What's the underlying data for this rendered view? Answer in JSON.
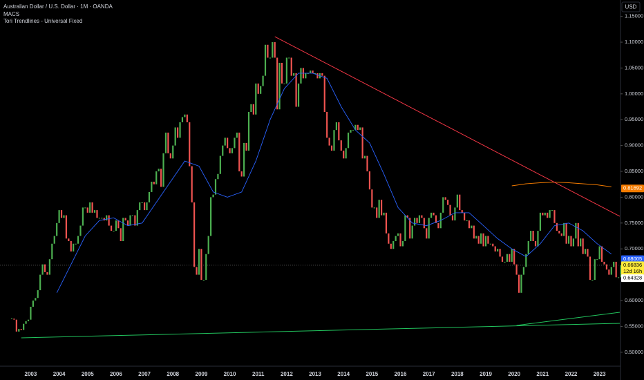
{
  "chart_data": {
    "type": "candlestick",
    "title": "Australian Dollar / U.S. Dollar · 1M · OANDA",
    "indicators": [
      "MACS",
      "Tori Trendlines - Universal Fixed"
    ],
    "currency_button": "USD",
    "up_color": "#4caf50",
    "down_color": "#ef5350",
    "closes": [
      0.565,
      0.563,
      0.54,
      0.545,
      0.543,
      0.555,
      0.56,
      0.563,
      0.588,
      0.6,
      0.605,
      0.62,
      0.65,
      0.67,
      0.655,
      0.65,
      0.68,
      0.71,
      0.725,
      0.75,
      0.775,
      0.76,
      0.765,
      0.72,
      0.715,
      0.695,
      0.71,
      0.71,
      0.725,
      0.745,
      0.78,
      0.78,
      0.77,
      0.79,
      0.77,
      0.775,
      0.76,
      0.76,
      0.76,
      0.755,
      0.765,
      0.745,
      0.735,
      0.735,
      0.755,
      0.74,
      0.715,
      0.76,
      0.755,
      0.745,
      0.765,
      0.765,
      0.745,
      0.775,
      0.79,
      0.79,
      0.775,
      0.79,
      0.81,
      0.83,
      0.825,
      0.85,
      0.855,
      0.82,
      0.885,
      0.925,
      0.885,
      0.875,
      0.9,
      0.935,
      0.915,
      0.945,
      0.955,
      0.96,
      0.945,
      0.86,
      0.79,
      0.665,
      0.65,
      0.7,
      0.64,
      0.64,
      0.69,
      0.725,
      0.8,
      0.805,
      0.835,
      0.845,
      0.88,
      0.9,
      0.915,
      0.895,
      0.885,
      0.895,
      0.915,
      0.925,
      0.85,
      0.84,
      0.905,
      0.89,
      0.965,
      0.98,
      0.96,
      1.02,
      1.0,
      1.015,
      1.035,
      1.095,
      1.07,
      1.07,
      1.1,
      1.07,
      0.97,
      1.06,
      1.02,
      1.02,
      1.07,
      1.07,
      1.035,
      1.04,
      0.975,
      1.02,
      1.05,
      1.03,
      1.04,
      1.04,
      1.045,
      1.04,
      1.04,
      1.03,
      1.04,
      1.035,
      0.965,
      0.915,
      0.9,
      0.89,
      0.93,
      0.945,
      0.91,
      0.89,
      0.875,
      0.895,
      0.925,
      0.93,
      0.93,
      0.94,
      0.93,
      0.935,
      0.875,
      0.88,
      0.85,
      0.815,
      0.78,
      0.78,
      0.76,
      0.795,
      0.765,
      0.77,
      0.73,
      0.71,
      0.7,
      0.715,
      0.725,
      0.73,
      0.705,
      0.715,
      0.765,
      0.76,
      0.72,
      0.745,
      0.76,
      0.75,
      0.765,
      0.76,
      0.74,
      0.72,
      0.76,
      0.77,
      0.765,
      0.75,
      0.74,
      0.77,
      0.8,
      0.795,
      0.785,
      0.765,
      0.755,
      0.78,
      0.805,
      0.775,
      0.77,
      0.755,
      0.755,
      0.74,
      0.745,
      0.72,
      0.725,
      0.71,
      0.73,
      0.705,
      0.725,
      0.71,
      0.71,
      0.705,
      0.695,
      0.7,
      0.685,
      0.675,
      0.675,
      0.69,
      0.675,
      0.7,
      0.67,
      0.65,
      0.615,
      0.65,
      0.665,
      0.69,
      0.715,
      0.735,
      0.715,
      0.705,
      0.735,
      0.77,
      0.765,
      0.77,
      0.76,
      0.775,
      0.775,
      0.75,
      0.735,
      0.73,
      0.725,
      0.75,
      0.71,
      0.725,
      0.705,
      0.72,
      0.75,
      0.705,
      0.72,
      0.69,
      0.7,
      0.685,
      0.64,
      0.64,
      0.68,
      0.68,
      0.705,
      0.675,
      0.67,
      0.66,
      0.65,
      0.665,
      0.675,
      0.645,
      0.645,
      0.66836
    ],
    "ma_fast": {
      "color": "#2962ff",
      "values": [
        0.615,
        0.67,
        0.725,
        0.755,
        0.76,
        0.745,
        0.75,
        0.79,
        0.83,
        0.87,
        0.86,
        0.81,
        0.8,
        0.81,
        0.87,
        0.95,
        1.01,
        1.04,
        1.04,
        1.03,
        0.975,
        0.93,
        0.905,
        0.845,
        0.78,
        0.75,
        0.745,
        0.755,
        0.77,
        0.77,
        0.745,
        0.72,
        0.7,
        0.685,
        0.71,
        0.745,
        0.75,
        0.735,
        0.71,
        0.69
      ]
    },
    "ma_slow": {
      "color": "#f57c00",
      "values": [
        0.822,
        0.826,
        0.828,
        0.829,
        0.828,
        0.826,
        0.824,
        0.82
      ]
    },
    "trendlines": [
      {
        "color": "#f23645",
        "values": [
          1.1107,
          0.763
        ]
      },
      {
        "color": "#22c55e",
        "values": [
          0.5278,
          0.5559
        ]
      },
      {
        "color": "#22c55e",
        "values": [
          0.5519,
          0.5773
        ]
      }
    ],
    "price_labels": [
      {
        "value": 0.81692,
        "color": "#f57c00"
      },
      {
        "value": 0.68005,
        "color": "#2962ff"
      },
      {
        "value": 0.66836,
        "color": "#ffeb3b",
        "countdown": "12d 16h"
      },
      {
        "value": 0.64328,
        "color": "#ffffff"
      }
    ],
    "year_labels": [
      "2003",
      "2004",
      "2005",
      "2006",
      "2007",
      "2008",
      "2009",
      "2010",
      "2011",
      "2012",
      "2013",
      "2014",
      "2015",
      "2016",
      "2017",
      "2018",
      "2019",
      "2020",
      "2021",
      "2022",
      "2023"
    ],
    "ylim": [
      0.473,
      1.1816
    ],
    "yticks": [
      {
        "value": 0.5,
        "label": "0.50000"
      },
      {
        "value": 0.55,
        "label": "0.55000"
      },
      {
        "value": 0.6,
        "label": "0.60000"
      },
      {
        "value": 0.65,
        "label": "0.65000"
      },
      {
        "value": 0.7,
        "label": "0.70000"
      },
      {
        "value": 0.75,
        "label": "0.75000"
      },
      {
        "value": 0.8,
        "label": "0.80000"
      },
      {
        "value": 0.85,
        "label": "0.85000"
      },
      {
        "value": 0.9,
        "label": "0.90000"
      },
      {
        "value": 0.95,
        "label": "0.95000"
      },
      {
        "value": 1.0,
        "label": "1.00000"
      },
      {
        "value": 1.05,
        "label": "1.05000"
      },
      {
        "value": 1.1,
        "label": "1.10000"
      },
      {
        "value": 1.15,
        "label": "1.15000"
      }
    ]
  }
}
